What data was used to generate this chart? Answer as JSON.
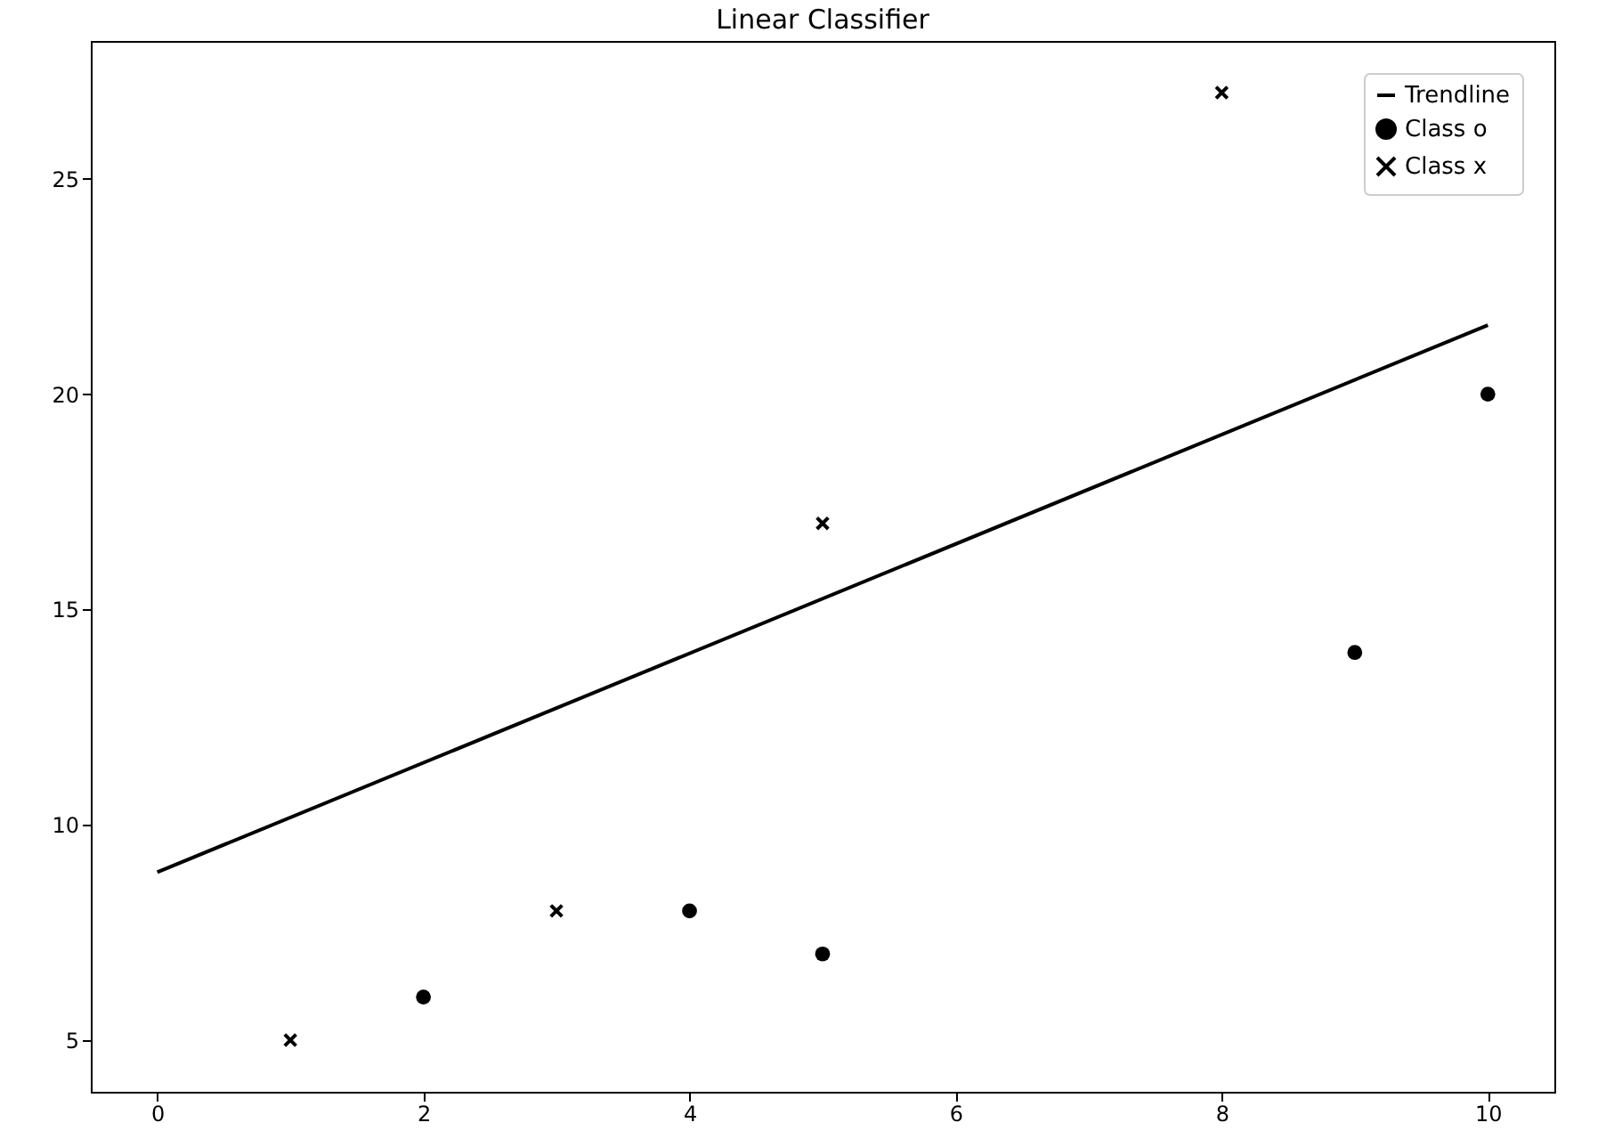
{
  "chart_data": {
    "type": "scatter",
    "title": "Linear Classifier",
    "xlim": [
      -0.5,
      10.5
    ],
    "ylim": [
      3.8,
      28.2
    ],
    "xticks": [
      0,
      2,
      4,
      6,
      8,
      10
    ],
    "yticks": [
      5,
      10,
      15,
      20,
      25
    ],
    "grid": false,
    "legend": "top right",
    "series": [
      {
        "name": "Trendline",
        "type": "line",
        "color": "#000000",
        "line_style": "solid",
        "x": [
          0,
          10
        ],
        "values": [
          8.9,
          21.6
        ]
      },
      {
        "name": "Class o",
        "marker": "circle",
        "color": "#000000",
        "x": [
          2,
          4,
          5,
          9,
          10
        ],
        "values": [
          6,
          8,
          7,
          14,
          20
        ]
      },
      {
        "name": "Class x",
        "marker": "cross",
        "color": "#000000",
        "x": [
          1,
          3,
          5,
          8
        ],
        "values": [
          5,
          8,
          17,
          27
        ]
      }
    ]
  }
}
